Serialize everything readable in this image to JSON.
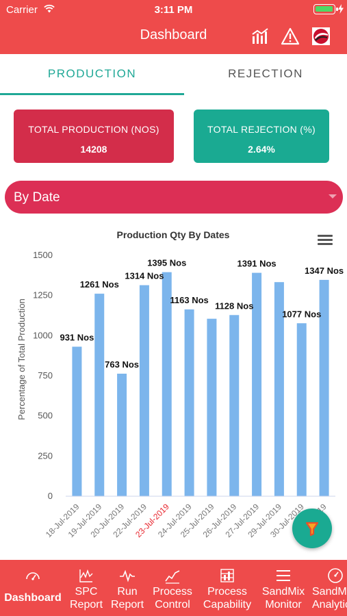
{
  "status_bar": {
    "carrier": "Carrier",
    "time": "3:11 PM"
  },
  "header": {
    "title": "Dashboard",
    "icons": [
      "bar-chart-icon",
      "warning-icon",
      "profile-logo-icon"
    ]
  },
  "tabs": [
    {
      "label": "PRODUCTION",
      "active": true
    },
    {
      "label": "REJECTION",
      "active": false
    }
  ],
  "cards": {
    "production": {
      "label": "TOTAL PRODUCTION (NOS)",
      "value": "14208",
      "color": "#d32d4a"
    },
    "rejection": {
      "label": "TOTAL REJECTION (%)",
      "value": "2.64%",
      "color": "#1aaa92"
    }
  },
  "filter": {
    "selected": "By Date"
  },
  "chart_data": {
    "type": "bar",
    "title": "Production Qty By Dates",
    "ylabel": "Percentage of Total Production",
    "ylim": [
      0,
      1500
    ],
    "yticks": [
      "0",
      "250",
      "500",
      "750",
      "1000",
      "1250",
      "1500"
    ],
    "categories": [
      "18-Jul-2019",
      "19-Jul-2019",
      "20-Jul-2019",
      "22-Jul-2019",
      "23-Jul-2019",
      "24-Jul-2019",
      "25-Jul-2019",
      "26-Jul-2019",
      "27-Jul-2019",
      "29-Jul-2019",
      "30-Jul-2019",
      "31-Jul-2019"
    ],
    "values": [
      931,
      1261,
      763,
      1314,
      1395,
      1163,
      1105,
      1128,
      1391,
      1333,
      1077,
      1347
    ],
    "data_labels": [
      "931 Nos",
      "1261 Nos",
      "763 Nos",
      "1314 Nos",
      "1395 Nos",
      "1163 Nos",
      "",
      "1128 Nos",
      "1391 Nos",
      "",
      "1077 Nos",
      "1347 Nos"
    ],
    "highlight_category": "23-Jul-2019",
    "bar_color": "#7cb5ec",
    "highlight_label_color": "#e8272f",
    "grid": false,
    "legend": "none"
  },
  "bottom_nav": [
    {
      "id": "dashboard",
      "line1": "Dashboard",
      "line2": "",
      "icon": "speedometer-icon",
      "active": true
    },
    {
      "id": "spc-report",
      "line1": "SPC",
      "line2": "Report",
      "icon": "spc-chart-icon"
    },
    {
      "id": "run-report",
      "line1": "Run",
      "line2": "Report",
      "icon": "pulse-icon"
    },
    {
      "id": "process-control",
      "line1": "Process",
      "line2": "Control",
      "icon": "trend-icon"
    },
    {
      "id": "process-capability",
      "line1": "Process",
      "line2": "Capability",
      "icon": "capability-icon"
    },
    {
      "id": "sandmix-monitor",
      "line1": "SandMix",
      "line2": "Monitor",
      "icon": "list-icon"
    },
    {
      "id": "sandmix-analytics",
      "line1": "SandMix",
      "line2": "Analytics",
      "icon": "gauge-icon"
    }
  ],
  "colors": {
    "header": "#ee4b4b",
    "accent": "#1fa896",
    "select": "#dc2f55"
  }
}
